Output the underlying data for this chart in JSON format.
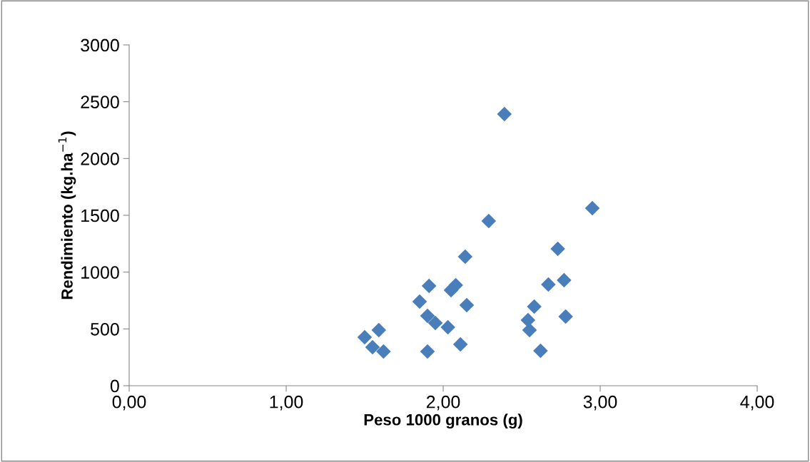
{
  "chart_data": {
    "type": "scatter",
    "xlabel": "Peso 1000 granos (g)",
    "ylabel": "Rendimiento (kg.ha$^{−1}$)",
    "x": [
      2.29,
      2.14,
      1.91,
      2.05,
      2.08,
      1.85,
      2.15,
      1.9,
      1.95,
      2.03,
      1.59,
      1.5,
      1.55,
      1.62,
      1.9,
      2.11,
      2.39,
      2.95,
      2.73,
      2.77,
      2.67,
      2.58,
      2.54,
      2.55,
      2.78,
      2.62
    ],
    "values": [
      1450,
      1136,
      879,
      841,
      885,
      741,
      709,
      615,
      552,
      515,
      490,
      427,
      339,
      301,
      301,
      364,
      2391,
      1563,
      1205,
      929,
      891,
      697,
      577,
      490,
      609,
      308
    ],
    "color": "#4a7ebb",
    "marker": "diamond",
    "xlim": [
      0,
      4
    ],
    "xticks": [
      {
        "value": 0,
        "label": "0,00"
      },
      {
        "value": 1,
        "label": "1,00"
      },
      {
        "value": 2,
        "label": "2,00"
      },
      {
        "value": 3,
        "label": "3,00"
      },
      {
        "value": 4,
        "label": "4,00"
      }
    ],
    "ylim": [
      0,
      3000
    ],
    "yticks": [
      0,
      500,
      1000,
      1500,
      2000,
      2500,
      3000
    ],
    "grid": false,
    "legend": false
  }
}
